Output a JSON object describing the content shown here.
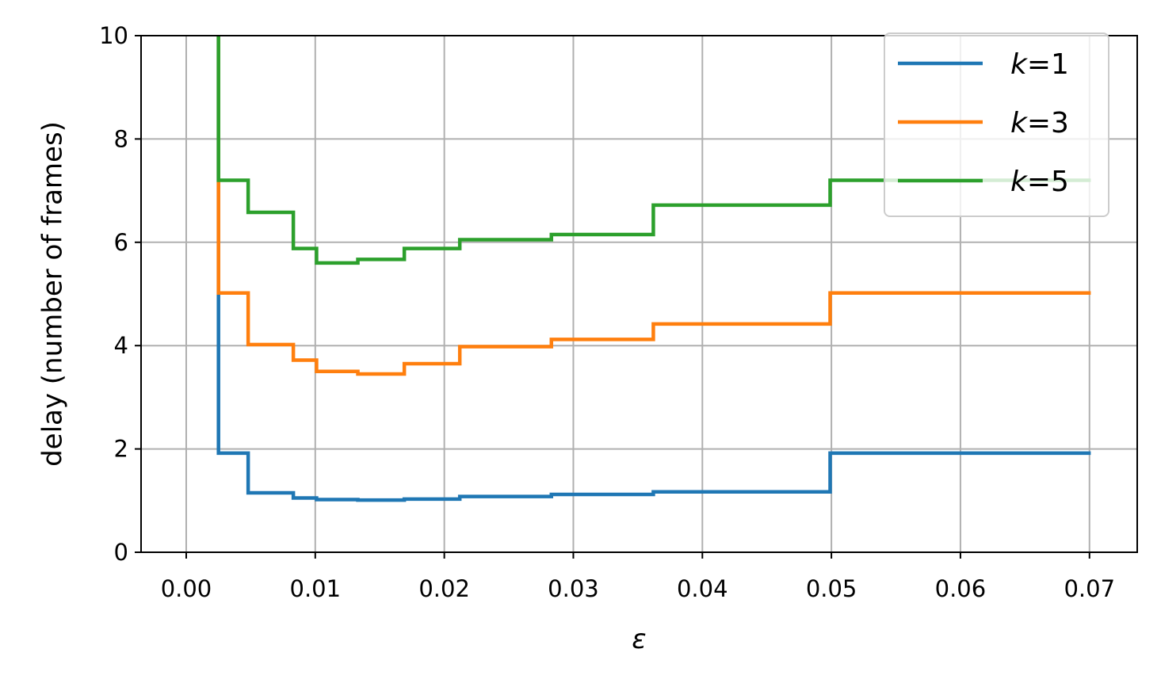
{
  "chart_data": {
    "type": "line",
    "step": true,
    "xlabel": "ε",
    "ylabel": "delay (number of frames)",
    "xlim": [
      -0.0035,
      0.0737
    ],
    "ylim": [
      0,
      10
    ],
    "xticks": [
      0.0,
      0.01,
      0.02,
      0.03,
      0.04,
      0.05,
      0.06,
      0.07
    ],
    "xtick_labels": [
      "0.00",
      "0.01",
      "0.02",
      "0.03",
      "0.04",
      "0.05",
      "0.06",
      "0.07"
    ],
    "yticks": [
      0,
      2,
      4,
      6,
      8,
      10
    ],
    "ytick_labels": [
      "0",
      "2",
      "4",
      "6",
      "8",
      "10"
    ],
    "grid": true,
    "legend_position": "top-right",
    "x": [
      0.0025,
      0.0048,
      0.0083,
      0.0101,
      0.0133,
      0.0169,
      0.0212,
      0.0283,
      0.0362,
      0.0499,
      0.0701
    ],
    "series": [
      {
        "name": "k=1",
        "label_italic": "k",
        "label_rest": "=1",
        "color": "#1f77b4",
        "values": [
          1.92,
          1.15,
          1.05,
          1.02,
          1.01,
          1.03,
          1.08,
          1.12,
          1.17,
          1.92,
          1.92
        ]
      },
      {
        "name": "k=3",
        "label_italic": "k",
        "label_rest": "=3",
        "color": "#ff7f0e",
        "values": [
          5.02,
          4.02,
          3.72,
          3.5,
          3.45,
          3.65,
          3.98,
          4.12,
          4.42,
          5.02,
          5.02
        ]
      },
      {
        "name": "k=5",
        "label_italic": "k",
        "label_rest": "=5",
        "color": "#2ca02c",
        "values": [
          7.2,
          6.58,
          5.88,
          5.6,
          5.67,
          5.88,
          6.05,
          6.15,
          6.72,
          7.2,
          7.2
        ]
      }
    ]
  }
}
